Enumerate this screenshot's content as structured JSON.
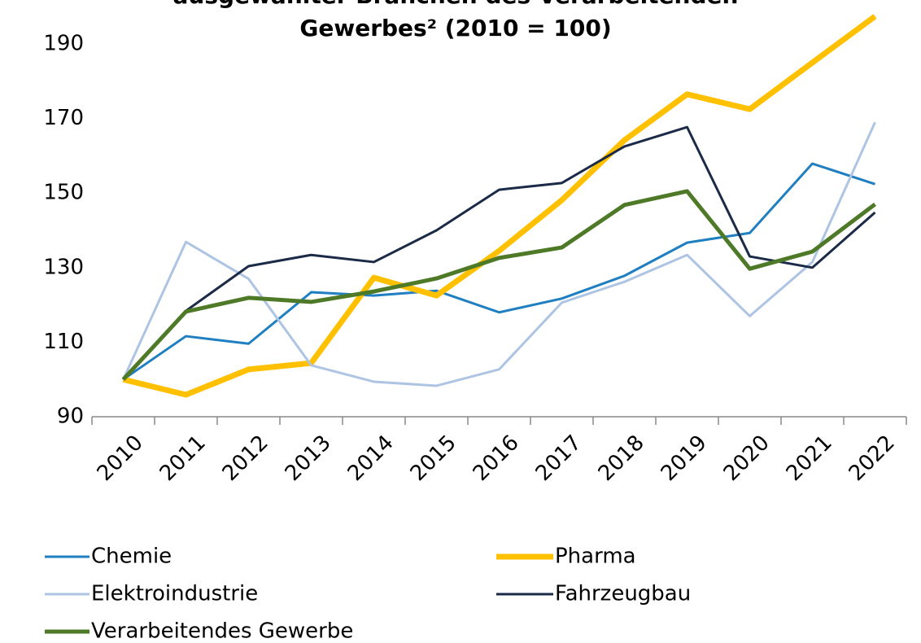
{
  "chart_data": {
    "type": "line",
    "title": [
      "ausgewählter Branchen des Verarbeitenden",
      "Gewerbes² (2010 = 100)"
    ],
    "categories": [
      "2010",
      "2011",
      "2012",
      "2013",
      "2014",
      "2015",
      "2016",
      "2017",
      "2018",
      "2019",
      "2020",
      "2021",
      "2022"
    ],
    "ylim": [
      90,
      190
    ],
    "yticks": [
      90,
      110,
      130,
      150,
      170,
      190
    ],
    "legend": "bottom",
    "series": [
      {
        "name": "Chemie",
        "color": "#1f7fc0",
        "values": [
          100,
          111.6,
          109.6,
          123.4,
          122.5,
          123.8,
          118,
          121.7,
          127.8,
          136.7,
          139.3,
          157.9,
          152.4
        ]
      },
      {
        "name": "Pharma",
        "color": "#ffc000",
        "values": [
          100,
          95.9,
          102.7,
          104.4,
          127.3,
          122.5,
          134.5,
          148.1,
          164.2,
          176.5,
          172.5,
          185,
          197.4
        ]
      },
      {
        "name": "Elektroindustrie",
        "color": "#aec4e3",
        "values": [
          100,
          136.9,
          127,
          103.8,
          99.4,
          98.3,
          102.7,
          120.6,
          126.2,
          133.4,
          117,
          131.5,
          169
        ]
      },
      {
        "name": "Fahrzeugbau",
        "color": "#1b2a47",
        "values": [
          100,
          118.4,
          130.4,
          133.4,
          131.5,
          140,
          150.9,
          152.7,
          162.5,
          167.7,
          133,
          130,
          144.8
        ]
      },
      {
        "name": "Verarbeitendes Gewerbe",
        "color": "#4e7a28",
        "values": [
          100,
          118.2,
          121.9,
          120.8,
          123.6,
          127.1,
          132.6,
          135.4,
          146.8,
          150.5,
          129.7,
          134.3,
          147
        ]
      }
    ]
  }
}
